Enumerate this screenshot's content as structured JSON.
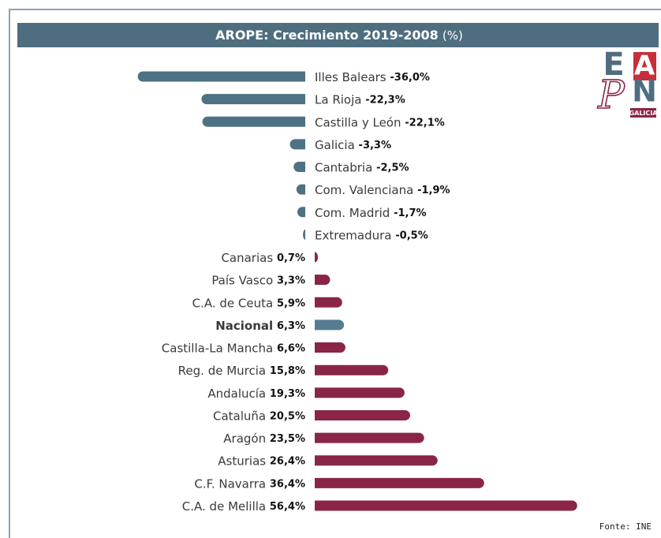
{
  "chart_data": {
    "type": "bar",
    "title": "AROPE: Crecimiento 2019-2008",
    "title_unit": "(%)",
    "source": "Fonte: INE",
    "logo": {
      "letters": [
        "E",
        "A",
        "P",
        "N"
      ],
      "sub": "GALICIA"
    },
    "categories": [
      "Illes Balears",
      "La Rioja",
      "Castilla y León",
      "Galicia",
      "Cantabria",
      "Com. Valenciana",
      "Com. Madrid",
      "Extremadura",
      "Canarias",
      "País Vasco",
      "C.A. de Ceuta",
      "Nacional",
      "Castilla-La Mancha",
      "Reg. de Murcia",
      "Andalucía",
      "Cataluña",
      "Aragón",
      "Asturias",
      "C.F. Navarra",
      "C.A. de Melilla"
    ],
    "values": [
      -36.0,
      -22.3,
      -22.1,
      -3.3,
      -2.5,
      -1.9,
      -1.7,
      -0.5,
      0.7,
      3.3,
      5.9,
      6.3,
      6.6,
      15.8,
      19.3,
      20.5,
      23.5,
      26.4,
      36.4,
      56.4
    ],
    "value_labels": [
      "-36,0%",
      "-22,3%",
      "-22,1%",
      "-3,3%",
      "-2,5%",
      "-1,9%",
      "-1,7%",
      "-0,5%",
      "0,7%",
      "3,3%",
      "5,9%",
      "6,3%",
      "6,6%",
      "15,8%",
      "19,3%",
      "20,5%",
      "23,5%",
      "26,4%",
      "36,4%",
      "56,4%"
    ],
    "negative_color": "#4e7184",
    "positive_color": "#8a2548",
    "highlight": 11,
    "highlight_color": "#557c90"
  }
}
